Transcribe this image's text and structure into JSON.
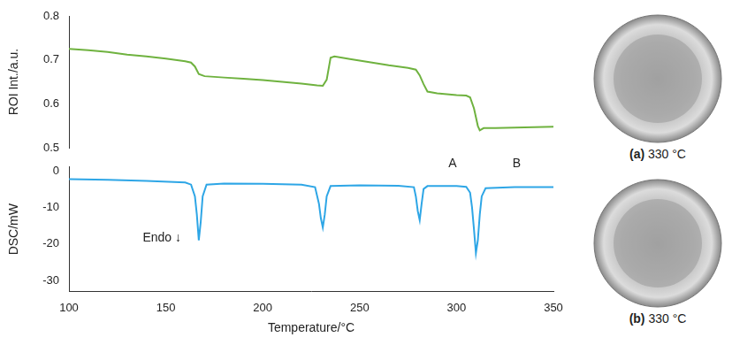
{
  "chart_data": [
    {
      "type": "line",
      "y_label": "ROI Int./a.u.",
      "x": [
        100,
        110,
        120,
        125,
        130,
        140,
        150,
        155,
        160,
        163,
        165,
        167,
        170,
        180,
        190,
        200,
        210,
        220,
        228,
        231,
        233,
        235,
        237,
        245,
        255,
        265,
        275,
        279,
        281,
        283,
        285,
        290,
        300,
        305,
        307,
        309,
        311,
        312,
        314,
        320,
        330,
        340,
        350
      ],
      "values": [
        0.725,
        0.722,
        0.718,
        0.715,
        0.712,
        0.708,
        0.703,
        0.7,
        0.697,
        0.694,
        0.685,
        0.668,
        0.663,
        0.66,
        0.657,
        0.654,
        0.65,
        0.646,
        0.642,
        0.641,
        0.655,
        0.705,
        0.708,
        0.702,
        0.695,
        0.688,
        0.682,
        0.678,
        0.665,
        0.645,
        0.628,
        0.624,
        0.62,
        0.619,
        0.615,
        0.59,
        0.55,
        0.54,
        0.545,
        0.545,
        0.546,
        0.547,
        0.548
      ],
      "color": "#6fb23f",
      "xlim": [
        100,
        350
      ],
      "ylim": [
        0.5,
        0.8
      ],
      "yticks": [
        0.5,
        0.6,
        0.7,
        0.8
      ],
      "tick_labels": "y",
      "grid": false
    },
    {
      "type": "line",
      "x_label": "Temperature/°C",
      "y_label": "DSC/mW",
      "x": [
        100,
        120,
        140,
        160,
        163,
        165,
        166,
        167,
        168,
        169,
        171,
        180,
        200,
        220,
        227,
        229,
        230,
        231,
        232,
        233,
        235,
        250,
        270,
        278,
        279,
        280,
        281,
        282,
        283,
        285,
        300,
        305,
        307,
        308,
        309,
        310,
        311,
        312,
        313,
        315,
        330,
        350
      ],
      "values": [
        -2.3,
        -2.5,
        -2.8,
        -3.2,
        -3.8,
        -7,
        -12,
        -19,
        -14,
        -7,
        -3.8,
        -3.5,
        -3.6,
        -3.8,
        -4.5,
        -9,
        -13,
        -15.5,
        -12,
        -7,
        -4.2,
        -4,
        -4.1,
        -4.5,
        -7,
        -11,
        -13.5,
        -9,
        -5,
        -4.2,
        -4.2,
        -4.4,
        -6,
        -10,
        -16,
        -22.5,
        -19,
        -12,
        -7,
        -4.8,
        -4.5,
        -4.5
      ],
      "color": "#2ea6e6",
      "xlim": [
        100,
        350
      ],
      "xticks": [
        100,
        150,
        200,
        250,
        300,
        350
      ],
      "ylim": [
        -33,
        1
      ],
      "yticks": [
        -30,
        -20,
        -10,
        0
      ],
      "grid": false,
      "annotations": [
        {
          "text": "A",
          "x": 298,
          "y": 0.3
        },
        {
          "text": "B",
          "x": 331,
          "y": 0.3
        },
        {
          "text": "Endo ↓",
          "x": 148,
          "y": -20
        }
      ]
    }
  ],
  "photos": [
    {
      "tag": "(a)",
      "caption": "330 °C"
    },
    {
      "tag": "(b)",
      "caption": "330 °C"
    }
  ]
}
